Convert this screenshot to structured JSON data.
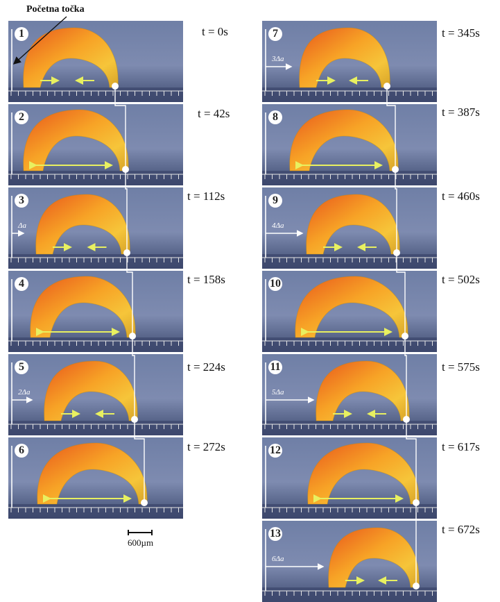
{
  "start_label": "Početna točka",
  "scale_label": "600µm",
  "frames": [
    {
      "num": "1",
      "time": "t = 0s",
      "delta": ""
    },
    {
      "num": "2",
      "time": "t = 42s",
      "delta": ""
    },
    {
      "num": "3",
      "time": "t = 112s",
      "delta": "Δa"
    },
    {
      "num": "4",
      "time": "t = 158s",
      "delta": ""
    },
    {
      "num": "5",
      "time": "t = 224s",
      "delta": "2Δa"
    },
    {
      "num": "6",
      "time": "t = 272s",
      "delta": ""
    },
    {
      "num": "7",
      "time": "t = 345s",
      "delta": "3Δa"
    },
    {
      "num": "8",
      "time": "t = 387s",
      "delta": ""
    },
    {
      "num": "9",
      "time": "t = 460s",
      "delta": "4Δa"
    },
    {
      "num": "10",
      "time": "t = 502s",
      "delta": ""
    },
    {
      "num": "11",
      "time": "t = 575s",
      "delta": "5Δa"
    },
    {
      "num": "12",
      "time": "t = 617s",
      "delta": ""
    },
    {
      "num": "13",
      "time": "t = 672s",
      "delta": "6Δa"
    }
  ]
}
